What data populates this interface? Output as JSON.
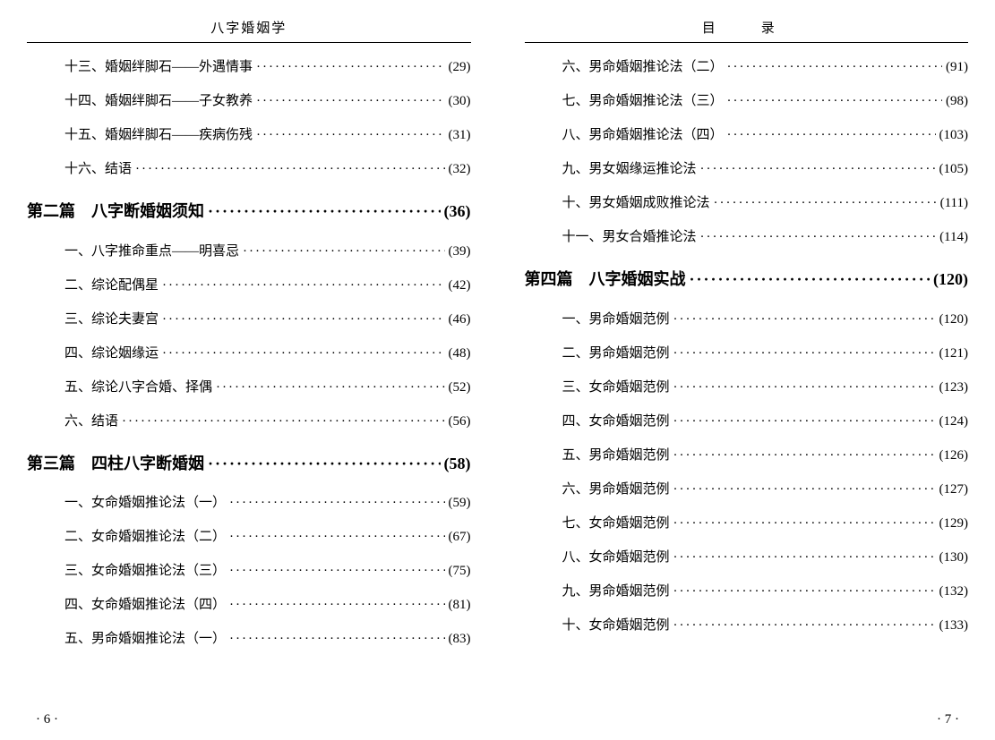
{
  "left": {
    "header": "八字婚姻学",
    "page_number": "· 6 ·",
    "entries": [
      {
        "type": "sub",
        "label": "十三、婚姻绊脚石——外遇情事",
        "page": "(29)"
      },
      {
        "type": "sub",
        "label": "十四、婚姻绊脚石——子女教养",
        "page": "(30)"
      },
      {
        "type": "sub",
        "label": "十五、婚姻绊脚石——疾病伤残",
        "page": "(31)"
      },
      {
        "type": "sub",
        "label": "十六、结语",
        "page": "(32)"
      },
      {
        "type": "chapter",
        "label": "第二篇　八字断婚姻须知",
        "page": "(36)"
      },
      {
        "type": "sub",
        "label": "一、八字推命重点——明喜忌",
        "page": "(39)"
      },
      {
        "type": "sub",
        "label": "二、综论配偶星",
        "page": "(42)"
      },
      {
        "type": "sub",
        "label": "三、综论夫妻宫",
        "page": "(46)"
      },
      {
        "type": "sub",
        "label": "四、综论姻缘运",
        "page": "(48)"
      },
      {
        "type": "sub",
        "label": "五、综论八字合婚、择偶",
        "page": "(52)"
      },
      {
        "type": "sub",
        "label": "六、结语",
        "page": "(56)"
      },
      {
        "type": "chapter",
        "label": "第三篇　四柱八字断婚姻",
        "page": "(58)"
      },
      {
        "type": "sub",
        "label": "一、女命婚姻推论法（一）",
        "page": "(59)"
      },
      {
        "type": "sub",
        "label": "二、女命婚姻推论法（二）",
        "page": "(67)"
      },
      {
        "type": "sub",
        "label": "三、女命婚姻推论法（三）",
        "page": "(75)"
      },
      {
        "type": "sub",
        "label": "四、女命婚姻推论法（四）",
        "page": "(81)"
      },
      {
        "type": "sub",
        "label": "五、男命婚姻推论法（一）",
        "page": "(83)"
      }
    ]
  },
  "right": {
    "header": "目　录",
    "page_number": "· 7 ·",
    "entries": [
      {
        "type": "sub",
        "label": "六、男命婚姻推论法（二）",
        "page": "(91)"
      },
      {
        "type": "sub",
        "label": "七、男命婚姻推论法（三）",
        "page": "(98)"
      },
      {
        "type": "sub",
        "label": "八、男命婚姻推论法（四）",
        "page": "(103)"
      },
      {
        "type": "sub",
        "label": "九、男女姻缘运推论法",
        "page": "(105)"
      },
      {
        "type": "sub",
        "label": "十、男女婚姻成败推论法",
        "page": "(111)"
      },
      {
        "type": "sub",
        "label": "十一、男女合婚推论法",
        "page": "(114)"
      },
      {
        "type": "chapter",
        "label": "第四篇　八字婚姻实战",
        "page": "(120)"
      },
      {
        "type": "sub",
        "label": "一、男命婚姻范例",
        "page": "(120)"
      },
      {
        "type": "sub",
        "label": "二、男命婚姻范例",
        "page": "(121)"
      },
      {
        "type": "sub",
        "label": "三、女命婚姻范例",
        "page": "(123)"
      },
      {
        "type": "sub",
        "label": "四、女命婚姻范例",
        "page": "(124)"
      },
      {
        "type": "sub",
        "label": "五、男命婚姻范例",
        "page": "(126)"
      },
      {
        "type": "sub",
        "label": "六、男命婚姻范例",
        "page": "(127)"
      },
      {
        "type": "sub",
        "label": "七、女命婚姻范例",
        "page": "(129)"
      },
      {
        "type": "sub",
        "label": "八、女命婚姻范例",
        "page": "(130)"
      },
      {
        "type": "sub",
        "label": "九、男命婚姻范例",
        "page": "(132)"
      },
      {
        "type": "sub",
        "label": "十、女命婚姻范例",
        "page": "(133)"
      }
    ]
  }
}
